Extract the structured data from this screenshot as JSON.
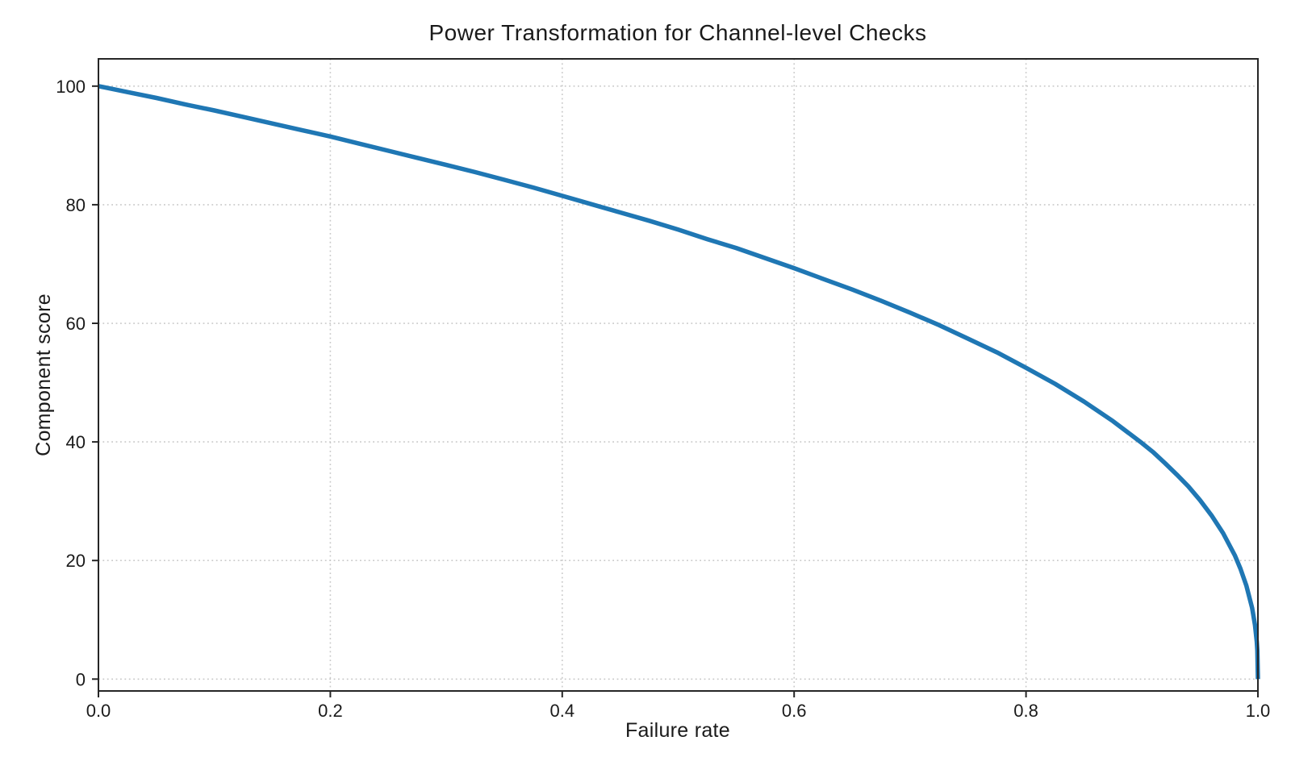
{
  "page": {
    "background": "#ffffff"
  },
  "chart_data": {
    "type": "line",
    "title": "Power Transformation for Channel-level Checks",
    "xlabel": "Failure rate",
    "ylabel": "Component score",
    "xlim": [
      0.0,
      1.0
    ],
    "ylim": [
      0,
      100
    ],
    "grid": {
      "visible": true,
      "style": "dotted",
      "color": "#c9c9c9"
    },
    "frame_color": "#262626",
    "tick_color": "#262626",
    "text_color": "#1a1a1a",
    "legend": "none",
    "xticks": [
      {
        "v": 0.0,
        "label": "0.0"
      },
      {
        "v": 0.2,
        "label": "0.2"
      },
      {
        "v": 0.4,
        "label": "0.4"
      },
      {
        "v": 0.6,
        "label": "0.6"
      },
      {
        "v": 0.8,
        "label": "0.8"
      },
      {
        "v": 1.0,
        "label": "1.0"
      }
    ],
    "yticks": [
      {
        "v": 0,
        "label": "0"
      },
      {
        "v": 20,
        "label": "20"
      },
      {
        "v": 40,
        "label": "40"
      },
      {
        "v": 60,
        "label": "60"
      },
      {
        "v": 80,
        "label": "80"
      },
      {
        "v": 100,
        "label": "100"
      }
    ],
    "series": [
      {
        "name": "component-score-curve",
        "color": "#1f77b4",
        "line_width": 5.5,
        "formula": "score = 100 * (1 - failure_rate)^0.4",
        "points": [
          [
            0.0,
            100.0
          ],
          [
            0.025,
            99.0
          ],
          [
            0.05,
            98.0
          ],
          [
            0.075,
            96.9
          ],
          [
            0.1,
            95.9
          ],
          [
            0.125,
            94.8
          ],
          [
            0.15,
            93.7
          ],
          [
            0.175,
            92.6
          ],
          [
            0.2,
            91.5
          ],
          [
            0.225,
            90.3
          ],
          [
            0.25,
            89.1
          ],
          [
            0.275,
            87.9
          ],
          [
            0.3,
            86.7
          ],
          [
            0.325,
            85.5
          ],
          [
            0.35,
            84.2
          ],
          [
            0.375,
            82.9
          ],
          [
            0.4,
            81.5
          ],
          [
            0.425,
            80.1
          ],
          [
            0.45,
            78.7
          ],
          [
            0.475,
            77.3
          ],
          [
            0.5,
            75.8
          ],
          [
            0.525,
            74.2
          ],
          [
            0.55,
            72.7
          ],
          [
            0.575,
            71.0
          ],
          [
            0.6,
            69.3
          ],
          [
            0.625,
            67.5
          ],
          [
            0.65,
            65.7
          ],
          [
            0.675,
            63.8
          ],
          [
            0.7,
            61.8
          ],
          [
            0.725,
            59.7
          ],
          [
            0.75,
            57.4
          ],
          [
            0.775,
            55.1
          ],
          [
            0.8,
            52.5
          ],
          [
            0.825,
            49.8
          ],
          [
            0.85,
            46.8
          ],
          [
            0.875,
            43.5
          ],
          [
            0.9,
            39.8
          ],
          [
            0.91,
            38.2
          ],
          [
            0.92,
            36.4
          ],
          [
            0.93,
            34.5
          ],
          [
            0.94,
            32.5
          ],
          [
            0.95,
            30.2
          ],
          [
            0.96,
            27.6
          ],
          [
            0.97,
            24.6
          ],
          [
            0.98,
            20.9
          ],
          [
            0.985,
            18.6
          ],
          [
            0.99,
            15.8
          ],
          [
            0.995,
            12.0
          ],
          [
            0.9975,
            9.1
          ],
          [
            0.999,
            6.3
          ],
          [
            0.9995,
            4.8
          ],
          [
            1.0,
            0.0
          ]
        ]
      }
    ]
  }
}
